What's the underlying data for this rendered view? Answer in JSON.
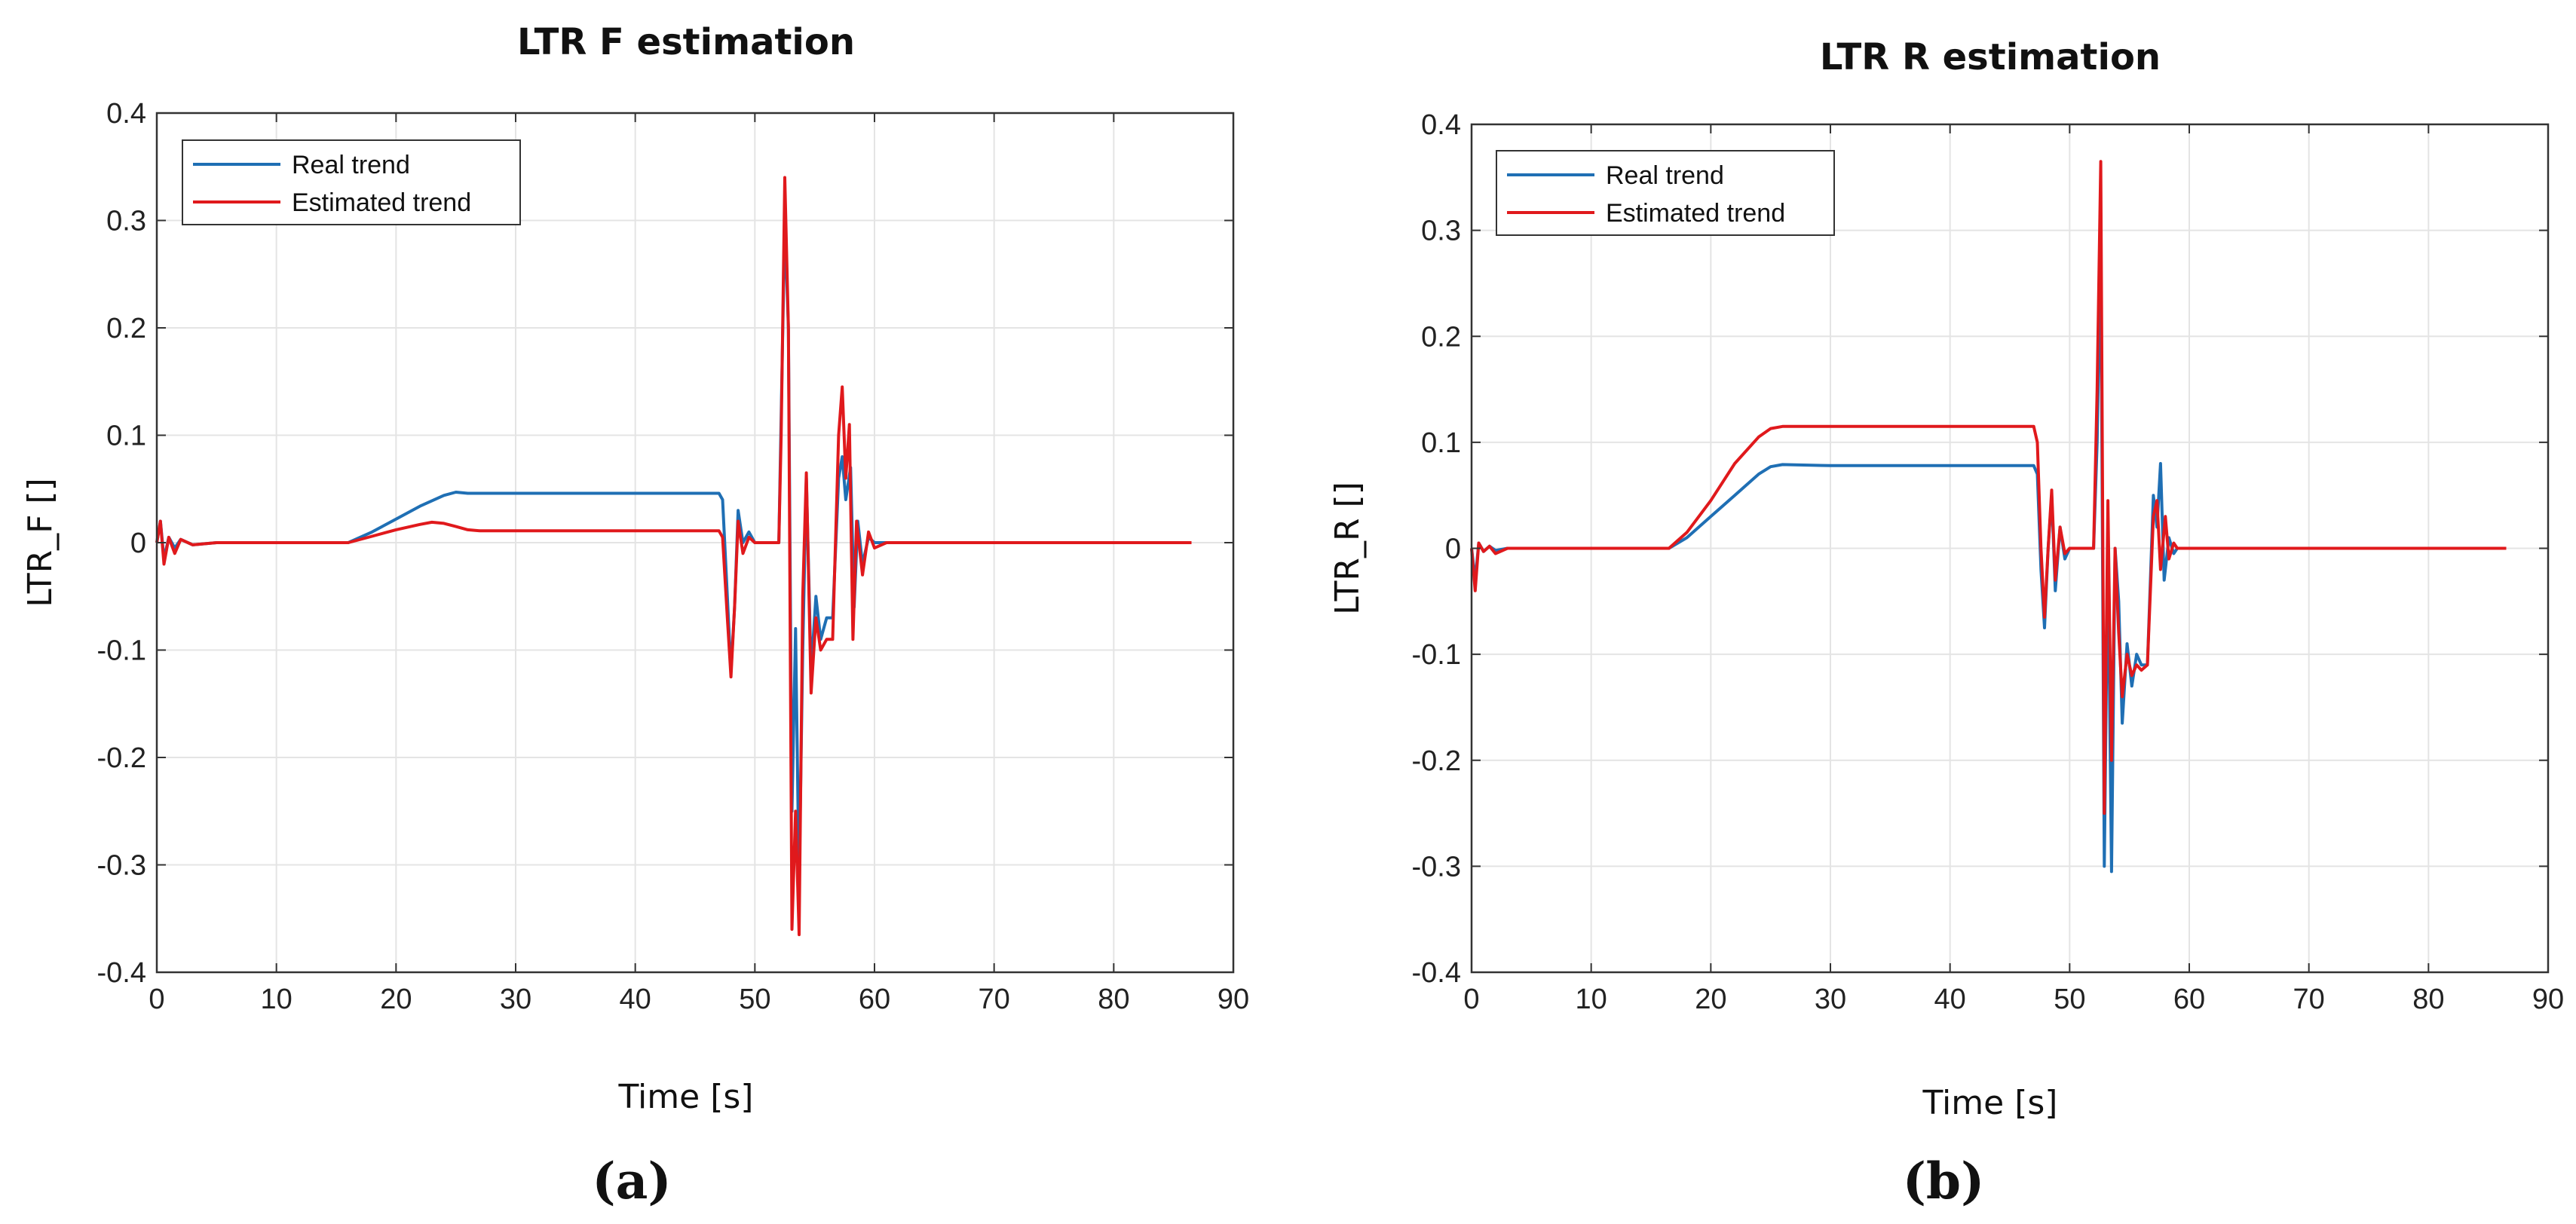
{
  "colors": {
    "real": "#1f6fb4",
    "estimated": "#e0191c"
  },
  "chart_data": [
    {
      "type": "line",
      "panel_label": "(a)",
      "title": "LTR F estimation",
      "xlabel": "Time [s]",
      "ylabel": "LTR_F []",
      "xlim": [
        0,
        90
      ],
      "ylim": [
        -0.4,
        0.4
      ],
      "xticks": [
        0,
        10,
        20,
        30,
        40,
        50,
        60,
        70,
        80,
        90
      ],
      "yticks": [
        -0.4,
        -0.3,
        -0.2,
        -0.1,
        0,
        0.1,
        0.2,
        0.3,
        0.4
      ],
      "ytick_labels": [
        "-0.4",
        "-0.3",
        "-0.2",
        "-0.1",
        "0",
        "0.1",
        "0.2",
        "0.3",
        "0.4"
      ],
      "grid": true,
      "legend_position": "top-left",
      "series": [
        {
          "name": "Real trend",
          "color_key": "real",
          "points": [
            [
              0,
              0
            ],
            [
              0.3,
              0.02
            ],
            [
              0.6,
              -0.015
            ],
            [
              1,
              0.005
            ],
            [
              1.5,
              -0.005
            ],
            [
              2,
              0.003
            ],
            [
              3,
              -0.002
            ],
            [
              5,
              0
            ],
            [
              10,
              0
            ],
            [
              16,
              0
            ],
            [
              18,
              0.01
            ],
            [
              20,
              0.022
            ],
            [
              22,
              0.034
            ],
            [
              24,
              0.044
            ],
            [
              25,
              0.047
            ],
            [
              26,
              0.046
            ],
            [
              30,
              0.046
            ],
            [
              40,
              0.046
            ],
            [
              47,
              0.046
            ],
            [
              47.3,
              0.04
            ],
            [
              47.7,
              -0.05
            ],
            [
              48,
              -0.12
            ],
            [
              48.3,
              -0.06
            ],
            [
              48.6,
              0.03
            ],
            [
              49,
              0.0
            ],
            [
              49.5,
              0.01
            ],
            [
              50,
              0
            ],
            [
              52,
              0
            ],
            [
              52.5,
              0.3
            ],
            [
              52.8,
              0.2
            ],
            [
              53.1,
              -0.25
            ],
            [
              53.4,
              -0.08
            ],
            [
              53.7,
              -0.32
            ],
            [
              54,
              -0.1
            ],
            [
              54.3,
              0.06
            ],
            [
              54.7,
              -0.12
            ],
            [
              55.1,
              -0.05
            ],
            [
              55.5,
              -0.09
            ],
            [
              56,
              -0.07
            ],
            [
              56.5,
              -0.07
            ],
            [
              57,
              0.06
            ],
            [
              57.3,
              0.08
            ],
            [
              57.6,
              0.04
            ],
            [
              58,
              0.07
            ],
            [
              58.3,
              -0.06
            ],
            [
              58.6,
              0.02
            ],
            [
              59,
              -0.02
            ],
            [
              59.5,
              0.005
            ],
            [
              60,
              0
            ],
            [
              70,
              0
            ],
            [
              86.5,
              0
            ]
          ]
        },
        {
          "name": "Estimated trend",
          "color_key": "estimated",
          "points": [
            [
              0,
              0
            ],
            [
              0.3,
              0.02
            ],
            [
              0.6,
              -0.02
            ],
            [
              1,
              0.005
            ],
            [
              1.5,
              -0.01
            ],
            [
              2,
              0.003
            ],
            [
              3,
              -0.002
            ],
            [
              5,
              0
            ],
            [
              10,
              0
            ],
            [
              16,
              0
            ],
            [
              18,
              0.006
            ],
            [
              20,
              0.012
            ],
            [
              22,
              0.017
            ],
            [
              23,
              0.019
            ],
            [
              24,
              0.018
            ],
            [
              25,
              0.015
            ],
            [
              26,
              0.012
            ],
            [
              27,
              0.011
            ],
            [
              30,
              0.011
            ],
            [
              40,
              0.011
            ],
            [
              47,
              0.011
            ],
            [
              47.3,
              0.005
            ],
            [
              47.7,
              -0.07
            ],
            [
              48,
              -0.125
            ],
            [
              48.3,
              -0.06
            ],
            [
              48.6,
              0.02
            ],
            [
              49,
              -0.01
            ],
            [
              49.5,
              0.005
            ],
            [
              50,
              0
            ],
            [
              52,
              0
            ],
            [
              52.2,
              0.1
            ],
            [
              52.5,
              0.34
            ],
            [
              52.8,
              0.2
            ],
            [
              53.1,
              -0.36
            ],
            [
              53.4,
              -0.25
            ],
            [
              53.7,
              -0.365
            ],
            [
              54,
              -0.05
            ],
            [
              54.3,
              0.065
            ],
            [
              54.7,
              -0.14
            ],
            [
              55.1,
              -0.07
            ],
            [
              55.5,
              -0.1
            ],
            [
              56,
              -0.09
            ],
            [
              56.5,
              -0.09
            ],
            [
              57,
              0.1
            ],
            [
              57.3,
              0.145
            ],
            [
              57.6,
              0.06
            ],
            [
              57.9,
              0.11
            ],
            [
              58.2,
              -0.09
            ],
            [
              58.5,
              0.02
            ],
            [
              59,
              -0.03
            ],
            [
              59.5,
              0.01
            ],
            [
              60,
              -0.005
            ],
            [
              61,
              0
            ],
            [
              70,
              0
            ],
            [
              86.5,
              0
            ]
          ]
        }
      ]
    },
    {
      "type": "line",
      "panel_label": "(b)",
      "title": "LTR R estimation",
      "xlabel": "Time [s]",
      "ylabel": "LTR_R []",
      "xlim": [
        0,
        90
      ],
      "ylim": [
        -0.4,
        0.4
      ],
      "xticks": [
        0,
        10,
        20,
        30,
        40,
        50,
        60,
        70,
        80,
        90
      ],
      "yticks": [
        -0.4,
        -0.3,
        -0.2,
        -0.1,
        0,
        0.1,
        0.2,
        0.3,
        0.4
      ],
      "ytick_labels": [
        "-0.4",
        "-0.3",
        "-0.2",
        "-0.1",
        "0",
        "0.1",
        "0.2",
        "0.3",
        "0.4"
      ],
      "grid": true,
      "legend_position": "top-left",
      "series": [
        {
          "name": "Real trend",
          "color_key": "real",
          "points": [
            [
              0,
              0
            ],
            [
              0.3,
              -0.03
            ],
            [
              0.6,
              0.005
            ],
            [
              1,
              -0.003
            ],
            [
              1.5,
              0.002
            ],
            [
              2,
              -0.002
            ],
            [
              3,
              0
            ],
            [
              10,
              0
            ],
            [
              16.5,
              0
            ],
            [
              18,
              0.01
            ],
            [
              20,
              0.03
            ],
            [
              22,
              0.05
            ],
            [
              24,
              0.07
            ],
            [
              25,
              0.077
            ],
            [
              26,
              0.079
            ],
            [
              30,
              0.078
            ],
            [
              40,
              0.078
            ],
            [
              47,
              0.078
            ],
            [
              47.3,
              0.07
            ],
            [
              47.6,
              -0.02
            ],
            [
              47.9,
              -0.075
            ],
            [
              48.2,
              0.0
            ],
            [
              48.5,
              0.05
            ],
            [
              48.8,
              -0.04
            ],
            [
              49.2,
              0.02
            ],
            [
              49.6,
              -0.01
            ],
            [
              50,
              0
            ],
            [
              52,
              0
            ],
            [
              52.3,
              0.1
            ],
            [
              52.6,
              0.29
            ],
            [
              52.9,
              -0.3
            ],
            [
              53.2,
              0.0
            ],
            [
              53.5,
              -0.305
            ],
            [
              53.8,
              0.0
            ],
            [
              54.1,
              -0.05
            ],
            [
              54.4,
              -0.165
            ],
            [
              54.8,
              -0.09
            ],
            [
              55.2,
              -0.13
            ],
            [
              55.6,
              -0.1
            ],
            [
              56,
              -0.11
            ],
            [
              56.5,
              -0.11
            ],
            [
              57,
              0.05
            ],
            [
              57.3,
              0.02
            ],
            [
              57.6,
              0.08
            ],
            [
              57.9,
              -0.03
            ],
            [
              58.3,
              0.01
            ],
            [
              58.7,
              -0.005
            ],
            [
              59,
              0
            ],
            [
              70,
              0
            ],
            [
              86.5,
              0
            ]
          ]
        },
        {
          "name": "Estimated trend",
          "color_key": "estimated",
          "points": [
            [
              0,
              0
            ],
            [
              0.3,
              -0.04
            ],
            [
              0.6,
              0.005
            ],
            [
              1,
              -0.003
            ],
            [
              1.5,
              0.002
            ],
            [
              2,
              -0.005
            ],
            [
              3,
              0
            ],
            [
              10,
              0
            ],
            [
              16.5,
              0
            ],
            [
              18,
              0.015
            ],
            [
              20,
              0.045
            ],
            [
              22,
              0.08
            ],
            [
              24,
              0.105
            ],
            [
              25,
              0.113
            ],
            [
              26,
              0.115
            ],
            [
              30,
              0.115
            ],
            [
              40,
              0.115
            ],
            [
              47,
              0.115
            ],
            [
              47.3,
              0.1
            ],
            [
              47.6,
              0.0
            ],
            [
              47.9,
              -0.065
            ],
            [
              48.2,
              0.0
            ],
            [
              48.5,
              0.055
            ],
            [
              48.8,
              -0.03
            ],
            [
              49.2,
              0.02
            ],
            [
              49.6,
              -0.005
            ],
            [
              50,
              0
            ],
            [
              52,
              0
            ],
            [
              52.3,
              0.15
            ],
            [
              52.6,
              0.365
            ],
            [
              52.9,
              -0.25
            ],
            [
              53.2,
              0.045
            ],
            [
              53.5,
              -0.2
            ],
            [
              53.8,
              0.0
            ],
            [
              54.1,
              -0.08
            ],
            [
              54.4,
              -0.14
            ],
            [
              54.8,
              -0.1
            ],
            [
              55.2,
              -0.12
            ],
            [
              55.6,
              -0.11
            ],
            [
              56,
              -0.115
            ],
            [
              56.5,
              -0.11
            ],
            [
              57,
              0.03
            ],
            [
              57.3,
              0.045
            ],
            [
              57.6,
              -0.02
            ],
            [
              58,
              0.03
            ],
            [
              58.3,
              -0.01
            ],
            [
              58.7,
              0.005
            ],
            [
              59,
              0
            ],
            [
              70,
              0
            ],
            [
              86.5,
              0
            ]
          ]
        }
      ]
    }
  ]
}
